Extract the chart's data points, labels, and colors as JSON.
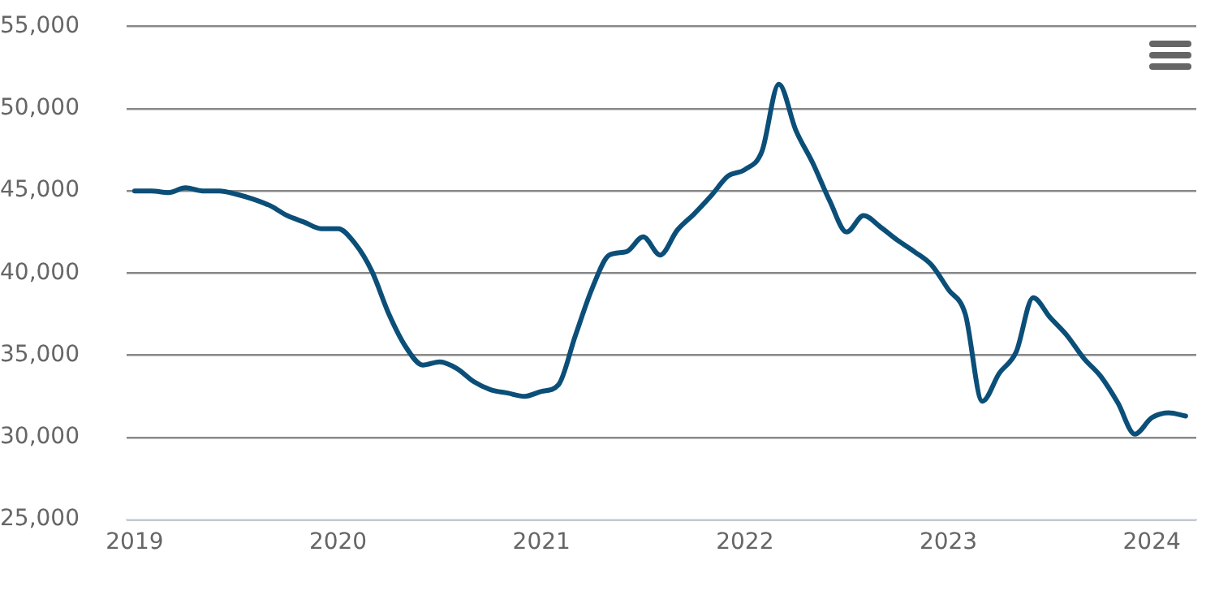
{
  "chart_data": {
    "type": "line",
    "x": [
      "2019-01",
      "2019-02",
      "2019-03",
      "2019-04",
      "2019-05",
      "2019-06",
      "2019-07",
      "2019-08",
      "2019-09",
      "2019-10",
      "2019-11",
      "2019-12",
      "2020-01",
      "2020-02",
      "2020-03",
      "2020-04",
      "2020-05",
      "2020-06",
      "2020-07",
      "2020-08",
      "2020-09",
      "2020-10",
      "2020-11",
      "2020-12",
      "2021-01",
      "2021-02",
      "2021-03",
      "2021-04",
      "2021-05",
      "2021-06",
      "2021-07",
      "2021-08",
      "2021-09",
      "2021-10",
      "2021-11",
      "2021-12",
      "2022-01",
      "2022-02",
      "2022-03",
      "2022-04",
      "2022-05",
      "2022-06",
      "2022-07",
      "2022-08",
      "2022-09",
      "2022-10",
      "2022-11",
      "2022-12",
      "2023-01",
      "2023-02",
      "2023-03",
      "2023-04",
      "2023-05",
      "2023-06",
      "2023-07",
      "2023-08",
      "2023-09",
      "2023-10",
      "2023-11",
      "2023-12",
      "2024-01",
      "2024-02",
      "2024-03"
    ],
    "series": [
      {
        "color": "#0b4f79",
        "values": [
          45000,
          45000,
          44900,
          45200,
          45000,
          45000,
          44800,
          44500,
          44100,
          43500,
          43100,
          42700,
          42700,
          41800,
          40100,
          37500,
          35500,
          34400,
          34600,
          34200,
          33400,
          32900,
          32700,
          32500,
          32800,
          33200,
          36200,
          39100,
          41100,
          41300,
          42200,
          41100,
          42600,
          43600,
          44700,
          45900,
          46300,
          47400,
          51500,
          48700,
          46700,
          44400,
          42500,
          43500,
          42800,
          42000,
          41300,
          40500,
          39000,
          37500,
          32200,
          33900,
          35200,
          38500,
          37300,
          36200,
          34800,
          33700,
          32100,
          30200,
          31200,
          31500,
          31300
        ]
      }
    ],
    "xlim": [
      "2018-12-17",
      "2024-03-20"
    ],
    "xticks": [
      "2019",
      "2020",
      "2021",
      "2022",
      "2023",
      "2024"
    ],
    "ylim": [
      25000,
      55000
    ],
    "yticks": [
      {
        "value": 25000,
        "label": "25,000"
      },
      {
        "value": 30000,
        "label": "30,000"
      },
      {
        "value": 35000,
        "label": "35,000"
      },
      {
        "value": 40000,
        "label": "40,000"
      },
      {
        "value": 45000,
        "label": "45,000"
      },
      {
        "value": 50000,
        "label": "50,000"
      },
      {
        "value": 55000,
        "label": "55,000"
      }
    ],
    "grid": "y",
    "legend": false,
    "marker": "none",
    "line_style": "solid"
  }
}
